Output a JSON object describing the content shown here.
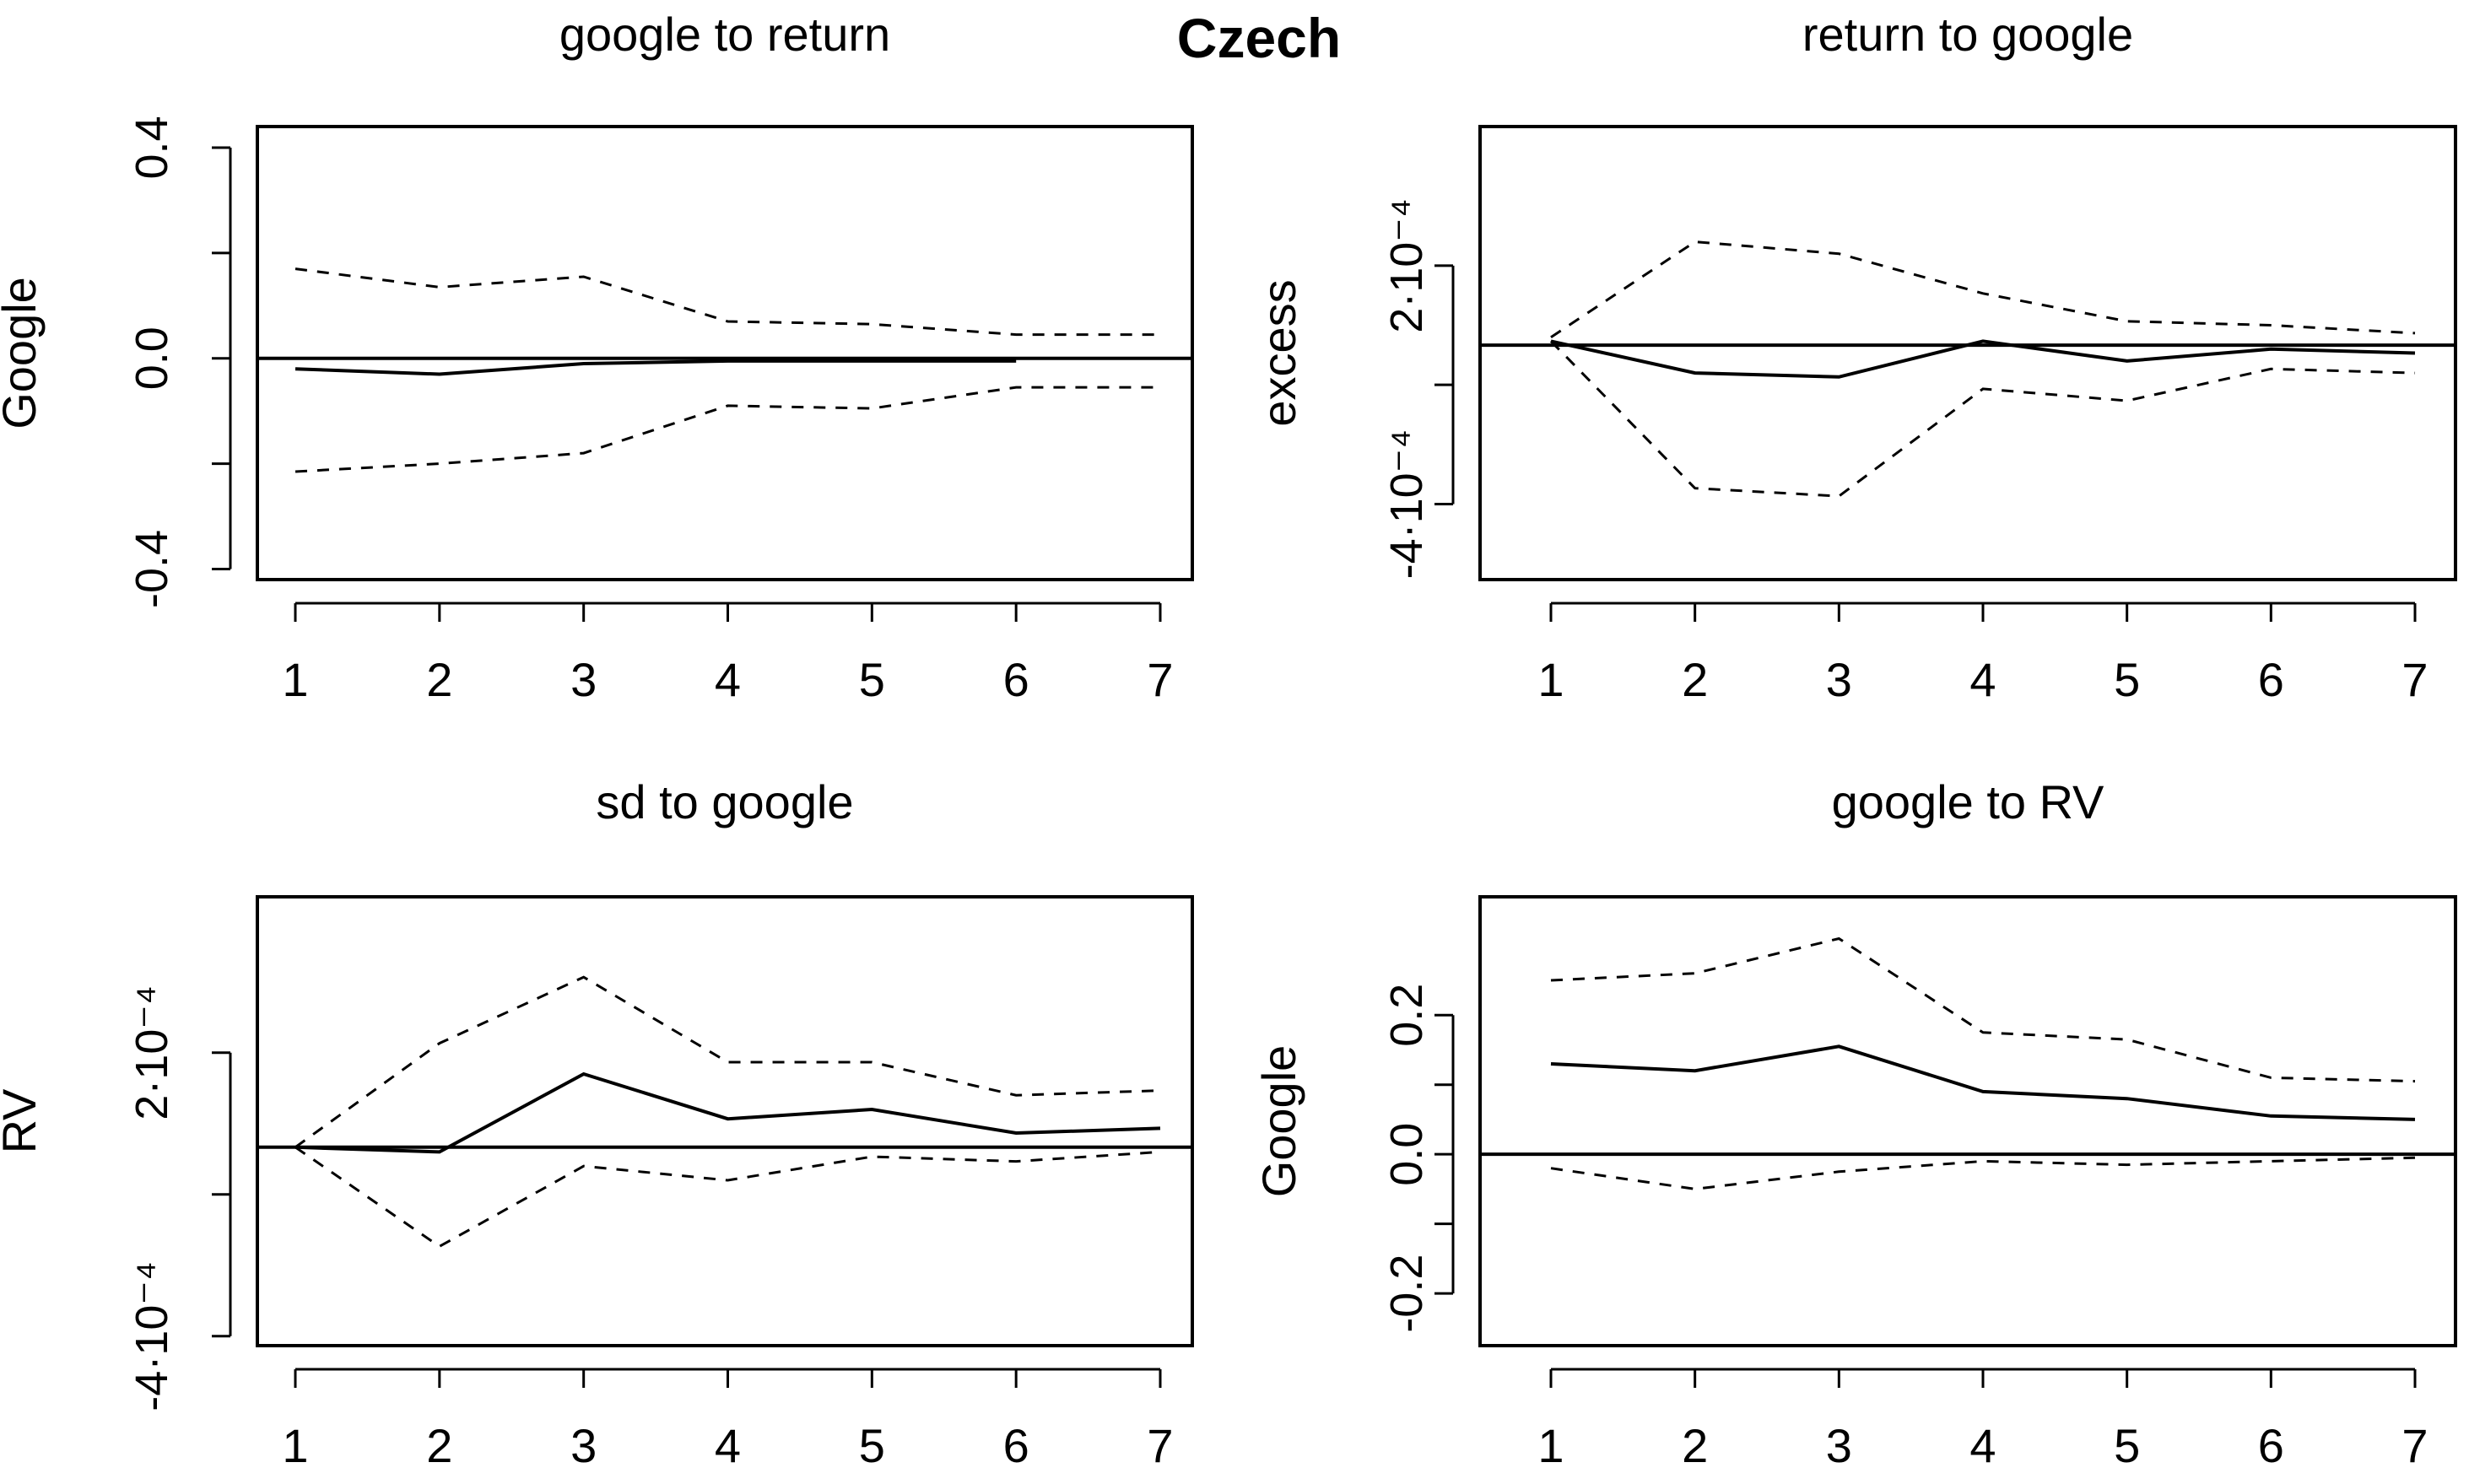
{
  "page": {
    "title": "Czech"
  },
  "chart_data": [
    {
      "type": "line",
      "title": "google to return",
      "ylabel": "Google",
      "xlabel": "",
      "x": [
        1,
        2,
        3,
        4,
        5,
        6,
        7
      ],
      "x_tick_labels": [
        "1",
        "2",
        "3",
        "4",
        "5",
        "6",
        "7"
      ],
      "ylim": [
        -0.42,
        0.44
      ],
      "y_ticks": [
        -0.4,
        0.0,
        0.4
      ],
      "y_tick_labels": [
        "-0.4",
        "0.0",
        "0.4"
      ],
      "zero_line": true,
      "response": [
        -0.02,
        -0.03,
        -0.01,
        -0.005,
        -0.005,
        -0.005,
        null
      ],
      "upper": [
        0.17,
        0.135,
        0.155,
        0.07,
        0.065,
        0.045,
        0.045
      ],
      "lower": [
        -0.215,
        -0.2,
        -0.18,
        -0.09,
        -0.095,
        -0.055,
        -0.055
      ]
    },
    {
      "type": "line",
      "title": "return to google",
      "ylabel": "excess",
      "xlabel": "",
      "x": [
        1,
        2,
        3,
        4,
        5,
        6,
        7
      ],
      "x_tick_labels": [
        "1",
        "2",
        "3",
        "4",
        "5",
        "6",
        "7"
      ],
      "ylim": [
        -0.00059,
        0.00055
      ],
      "y_ticks": [
        -0.0004,
        0.0002
      ],
      "y_tick_labels": [
        "-4·10⁻⁴",
        "2·10⁻⁴"
      ],
      "zero_line": true,
      "response": [
        1e-05,
        -7e-05,
        -8e-05,
        1e-05,
        -4e-05,
        -1e-05,
        -2e-05
      ],
      "upper": [
        2e-05,
        0.00026,
        0.00023,
        0.00013,
        6e-05,
        5e-05,
        3e-05
      ],
      "lower": [
        1e-05,
        -0.00036,
        -0.00038,
        -0.00011,
        -0.00014,
        -6e-05,
        -7e-05
      ]
    },
    {
      "type": "line",
      "title": "sd to google",
      "ylabel": "RV",
      "xlabel": "",
      "x": [
        1,
        2,
        3,
        4,
        5,
        6,
        7
      ],
      "x_tick_labels": [
        "1",
        "2",
        "3",
        "4",
        "5",
        "6",
        "7"
      ],
      "ylim": [
        -0.00042,
        0.00053
      ],
      "y_ticks": [
        -0.0004,
        0.0002
      ],
      "y_tick_labels": [
        "-4·10⁻⁴",
        "2·10⁻⁴"
      ],
      "zero_line": true,
      "response": [
        0.0,
        -1e-05,
        0.000155,
        6e-05,
        8e-05,
        3e-05,
        4e-05
      ],
      "upper": [
        0.0,
        0.00022,
        0.00036,
        0.00018,
        0.00018,
        0.00011,
        0.00012
      ],
      "lower": [
        0.0,
        -0.00021,
        -4e-05,
        -7e-05,
        -2e-05,
        -3e-05,
        -1e-05
      ]
    },
    {
      "type": "line",
      "title": "google to RV",
      "ylabel": "Google",
      "xlabel": "",
      "x": [
        1,
        2,
        3,
        4,
        5,
        6,
        7
      ],
      "x_tick_labels": [
        "1",
        "2",
        "3",
        "4",
        "5",
        "6",
        "7"
      ],
      "ylim": [
        -0.275,
        0.37
      ],
      "y_ticks": [
        -0.2,
        0.0,
        0.2
      ],
      "y_tick_labels": [
        "-0.2",
        "0.0",
        "0.2"
      ],
      "zero_line": true,
      "response": [
        0.13,
        0.12,
        0.155,
        0.09,
        0.08,
        0.055,
        0.05
      ],
      "upper": [
        0.25,
        0.26,
        0.31,
        0.175,
        0.165,
        0.11,
        0.105
      ],
      "lower": [
        -0.02,
        -0.05,
        -0.025,
        -0.01,
        -0.015,
        -0.01,
        -0.005
      ]
    }
  ]
}
